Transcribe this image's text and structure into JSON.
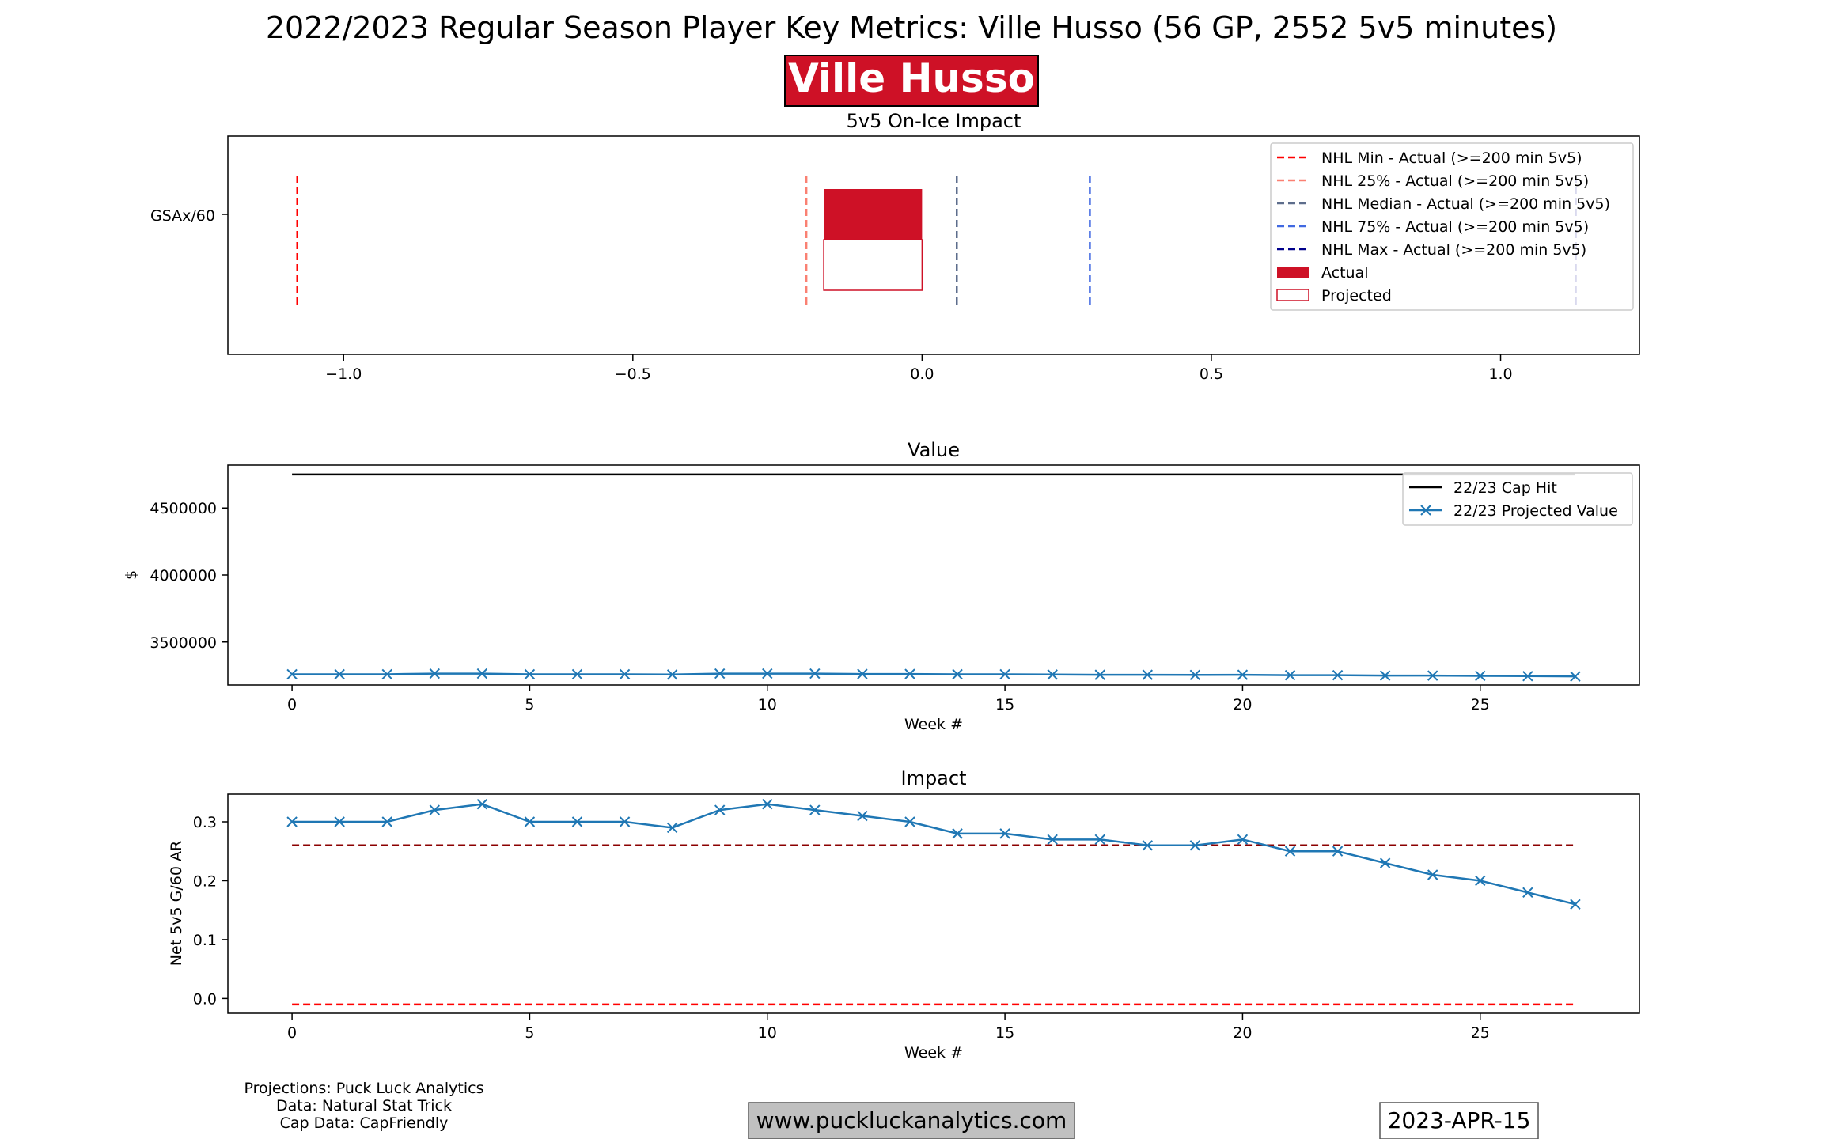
{
  "header": {
    "title": "2022/2023 Regular Season Player Key Metrics: Ville Husso (56 GP, 2552 5v5 minutes)",
    "player_badge": "Ville Husso",
    "badge_color": "#CE1126"
  },
  "footer": {
    "credits": [
      "Projections: Puck Luck Analytics",
      "Data: Natural Stat Trick",
      "Cap Data: CapFriendly"
    ],
    "website": "www.puckluckanalytics.com",
    "date": "2023-APR-15"
  },
  "chart_data": [
    {
      "type": "bar",
      "orientation": "horizontal",
      "title": "5v5 On-Ice Impact",
      "xlabel": "",
      "ylabel": "",
      "category": "GSAx/60",
      "xlim": [
        -1.2,
        1.24
      ],
      "xticks": [
        -1.0,
        -0.5,
        0.0,
        0.5,
        1.0
      ],
      "xtick_labels": [
        "−1.0",
        "−0.5",
        "0.0",
        "0.5",
        "1.0"
      ],
      "bars": [
        {
          "name": "Actual",
          "start": -0.17,
          "end": 0.0,
          "fill": "#CE1126"
        },
        {
          "name": "Projected",
          "start": -0.17,
          "end": 0.0,
          "fill": "none",
          "edge": "#CE1126"
        }
      ],
      "reference_lines": [
        {
          "name": "NHL Min - Actual (>=200 min 5v5)",
          "x": -1.08,
          "color": "#ff0000"
        },
        {
          "name": "NHL 25% - Actual (>=200 min 5v5)",
          "x": -0.2,
          "color": "#fa8072"
        },
        {
          "name": "NHL Median - Actual (>=200 min 5v5)",
          "x": 0.06,
          "color": "#5d6d8c"
        },
        {
          "name": "NHL 75% - Actual (>=200 min 5v5)",
          "x": 0.29,
          "color": "#4169e1"
        },
        {
          "name": "NHL Max - Actual (>=200 min 5v5)",
          "x": 1.13,
          "color": "#00008b"
        }
      ],
      "legend": [
        "NHL Min - Actual (>=200 min 5v5)",
        "NHL 25% - Actual (>=200 min 5v5)",
        "NHL Median - Actual (>=200 min 5v5)",
        "NHL 75% - Actual (>=200 min 5v5)",
        "NHL Max - Actual (>=200 min 5v5)",
        "Actual",
        "Projected"
      ],
      "legend_location": "upper right"
    },
    {
      "type": "line",
      "title": "Value",
      "xlabel": "Week #",
      "ylabel": "$",
      "x": [
        0,
        1,
        2,
        3,
        4,
        5,
        6,
        7,
        8,
        9,
        10,
        11,
        12,
        13,
        14,
        15,
        16,
        17,
        18,
        19,
        20,
        21,
        22,
        23,
        24,
        25,
        26,
        27
      ],
      "xlim": [
        -1.35,
        28.35
      ],
      "ylim": [
        3180000,
        4820000
      ],
      "xticks": [
        0,
        5,
        10,
        15,
        20,
        25
      ],
      "yticks": [
        3500000,
        4000000,
        4500000
      ],
      "series": [
        {
          "name": "22/23 Cap Hit",
          "color": "#000000",
          "marker": "none",
          "values": [
            4750000,
            4750000,
            4750000,
            4750000,
            4750000,
            4750000,
            4750000,
            4750000,
            4750000,
            4750000,
            4750000,
            4750000,
            4750000,
            4750000,
            4750000,
            4750000,
            4750000,
            4750000,
            4750000,
            4750000,
            4750000,
            4750000,
            4750000,
            4750000,
            4750000,
            4750000,
            4750000,
            4750000
          ]
        },
        {
          "name": "22/23 Projected Value",
          "color": "#1f77b4",
          "marker": "x",
          "values": [
            3260000,
            3260000,
            3260000,
            3265000,
            3265000,
            3260000,
            3260000,
            3260000,
            3258000,
            3265000,
            3265000,
            3265000,
            3262000,
            3262000,
            3260000,
            3260000,
            3258000,
            3256000,
            3256000,
            3255000,
            3256000,
            3253000,
            3253000,
            3250000,
            3250000,
            3248000,
            3246000,
            3244000
          ]
        }
      ],
      "legend_location": "upper right"
    },
    {
      "type": "line",
      "title": "Impact",
      "xlabel": "Week #",
      "ylabel": "Net 5v5 G/60 AR",
      "x": [
        0,
        1,
        2,
        3,
        4,
        5,
        6,
        7,
        8,
        9,
        10,
        11,
        12,
        13,
        14,
        15,
        16,
        17,
        18,
        19,
        20,
        21,
        22,
        23,
        24,
        25,
        26,
        27
      ],
      "xlim": [
        -1.35,
        28.35
      ],
      "ylim": [
        -0.025,
        0.347
      ],
      "xticks": [
        0,
        5,
        10,
        15,
        20,
        25
      ],
      "yticks": [
        0.0,
        0.1,
        0.2,
        0.3
      ],
      "series": [
        {
          "name": "",
          "color": "#1f77b4",
          "marker": "x",
          "values": [
            0.3,
            0.3,
            0.3,
            0.32,
            0.33,
            0.3,
            0.3,
            0.3,
            0.29,
            0.32,
            0.33,
            0.32,
            0.31,
            0.3,
            0.28,
            0.28,
            0.27,
            0.27,
            0.26,
            0.26,
            0.27,
            0.25,
            0.25,
            0.23,
            0.21,
            0.2,
            0.18,
            0.16
          ]
        }
      ],
      "reference_lines": [
        {
          "y": 0.26,
          "color": "#8b0000",
          "style": "dashed"
        },
        {
          "y": -0.01,
          "color": "#ff0000",
          "style": "dashed"
        }
      ]
    }
  ]
}
